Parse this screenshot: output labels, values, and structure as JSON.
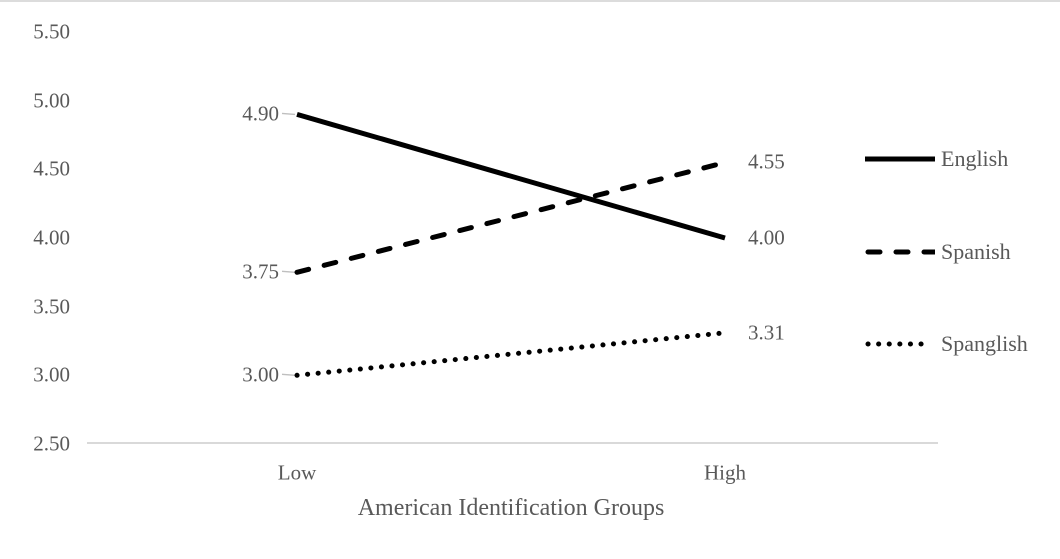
{
  "chart_data": {
    "type": "line",
    "title": "",
    "xlabel": "American Identification Groups",
    "ylabel": "",
    "categories": [
      "Low",
      "High"
    ],
    "series": [
      {
        "name": "English",
        "style": "solid",
        "values": [
          4.9,
          4.0
        ],
        "labels": [
          "4.90",
          "4.00"
        ]
      },
      {
        "name": "Spanish",
        "style": "dashed",
        "values": [
          3.75,
          4.55
        ],
        "labels": [
          "3.75",
          "4.55"
        ]
      },
      {
        "name": "Spanglish",
        "style": "dotted",
        "values": [
          3.0,
          3.31
        ],
        "labels": [
          "3.00",
          "3.31"
        ]
      }
    ],
    "y_ticks": [
      "5.50",
      "5.00",
      "4.50",
      "4.00",
      "3.50",
      "3.00",
      "2.50"
    ],
    "ylim": [
      2.5,
      5.5
    ],
    "grid": false,
    "legend_position": "right",
    "colors": {
      "line": "#000000",
      "text": "#595959",
      "axis_line": "#d9d9d9",
      "leader_line": "#bfbfbf"
    }
  }
}
